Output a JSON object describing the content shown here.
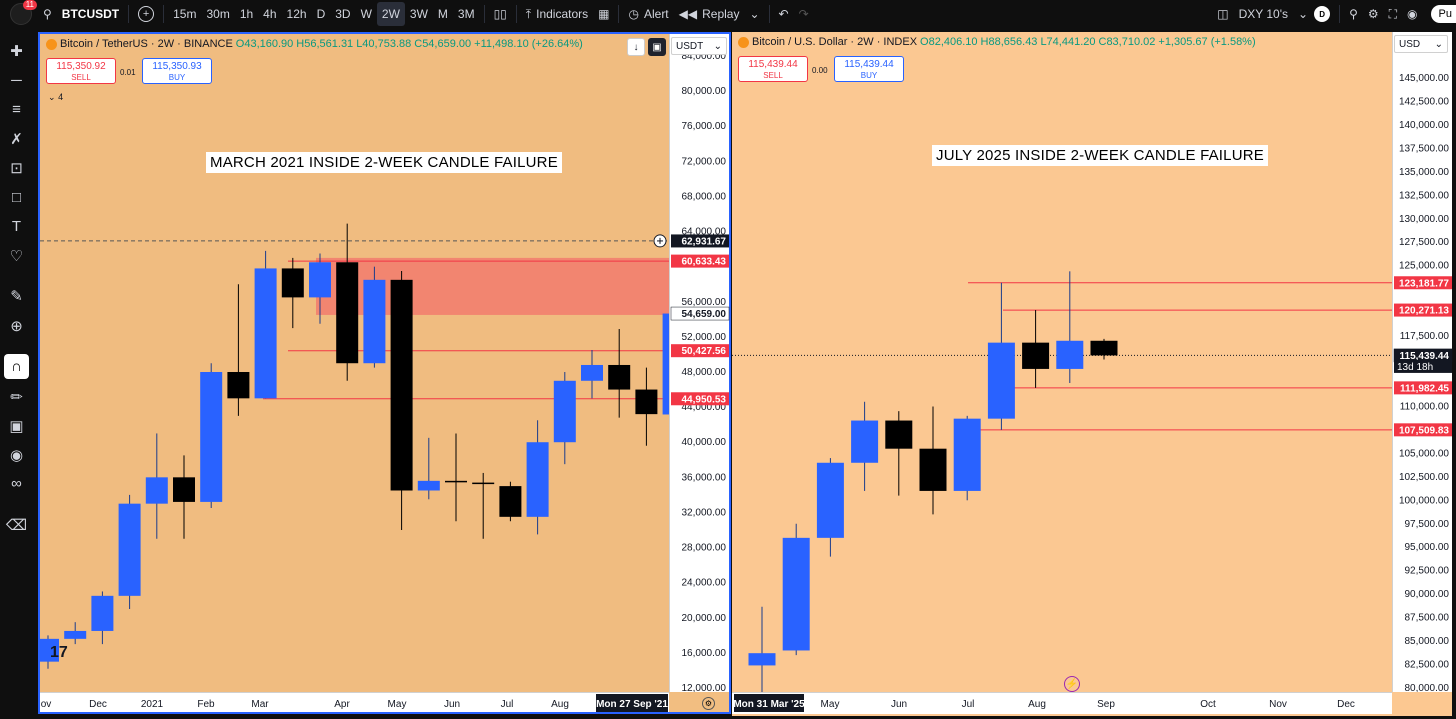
{
  "topbar": {
    "symbol": "BTCUSDT",
    "badge_count": "11",
    "intervals": [
      "15m",
      "30m",
      "1h",
      "4h",
      "12h",
      "D",
      "3D",
      "W",
      "2W",
      "3W",
      "M",
      "3M"
    ],
    "active_interval": "2W",
    "indicators_label": "Indicators",
    "alert_label": "Alert",
    "replay_label": "Replay",
    "compare_symbol": "DXY 10's",
    "d_badge": "D",
    "profile_label": "Pu"
  },
  "left_panel": {
    "pair": "Bitcoin / TetherUS · 2W · BINANCE",
    "open": "O43,160.90",
    "high": "H56,561.31",
    "low": "L40,753.88",
    "close": "C54,659.00",
    "change": "+11,498.10 (+26.64%)",
    "sell_price": "115,350.92",
    "sell_label": "SELL",
    "spread": "0.01",
    "buy_price": "115,350.93",
    "buy_label": "BUY",
    "layer_count": "4",
    "currency": "USDT",
    "title": "MARCH 2021 INSIDE 2-WEEK CANDLE FAILURE",
    "y_ticks": [
      "84,000.00",
      "80,000.00",
      "76,000.00",
      "72,000.00",
      "68,000.00",
      "64,000.00",
      "56,000.00",
      "52,000.00",
      "48,000.00",
      "44,000.00",
      "40,000.00",
      "36,000.00",
      "32,000.00",
      "28,000.00",
      "24,000.00",
      "20,000.00",
      "16,000.00",
      "12,000.00"
    ],
    "price_labels": [
      {
        "text": "62,931.67",
        "kind": "crosshair"
      },
      {
        "text": "60,633.43",
        "kind": "red"
      },
      {
        "text": "54,659.00",
        "kind": "last"
      },
      {
        "text": "50,427.56",
        "kind": "red"
      },
      {
        "text": "44,950.53",
        "kind": "red"
      }
    ],
    "x_ticks": [
      "ov",
      "Dec",
      "2021",
      "Feb",
      "Mar",
      "Apr",
      "May",
      "Jun",
      "Jul",
      "Aug"
    ],
    "x_cursor_label": "Mon 27 Sep '21"
  },
  "right_panel": {
    "pair": "Bitcoin / U.S. Dollar · 2W · INDEX",
    "open": "O82,406.10",
    "high": "H88,656.43",
    "low": "L74,441.20",
    "close": "C83,710.02",
    "change": "+1,305.67 (+1.58%)",
    "sell_price": "115,439.44",
    "sell_label": "SELL",
    "spread": "0.00",
    "buy_price": "115,439.44",
    "buy_label": "BUY",
    "currency": "USD",
    "title": "JULY 2025 INSIDE 2-WEEK CANDLE FAILURE",
    "y_ticks": [
      "145,000.00",
      "142,500.00",
      "140,000.00",
      "137,500.00",
      "135,000.00",
      "132,500.00",
      "130,000.00",
      "127,500.00",
      "125,000.00",
      "117,500.00",
      "110,000.00",
      "105,000.00",
      "102,500.00",
      "100,000.00",
      "97,500.00",
      "95,000.00",
      "92,500.00",
      "90,000.00",
      "87,500.00",
      "85,000.00",
      "82,500.00",
      "80,000.00"
    ],
    "price_labels": [
      {
        "text": "123,181.77",
        "kind": "red"
      },
      {
        "text": "120,271.13",
        "kind": "red"
      },
      {
        "text": "115,439.44",
        "kind": "last"
      },
      {
        "text": "13d 18h",
        "kind": "countdown"
      },
      {
        "text": "111,982.45",
        "kind": "red"
      },
      {
        "text": "107,509.83",
        "kind": "red"
      }
    ],
    "x_ticks": [
      "May",
      "Jun",
      "Jul",
      "Aug",
      "Sep",
      "Oct",
      "Nov",
      "Dec"
    ],
    "x_cursor_label": "Mon 31 Mar '25"
  },
  "colors": {
    "bull": "#2962ff",
    "bear": "#000000",
    "level_line": "#f23645",
    "zone_fill": "#f28570",
    "left_bg": "#f0bc80",
    "right_bg": "#fbc892"
  },
  "chart_data": [
    {
      "type": "candlestick",
      "title": "MARCH 2021 INSIDE 2-WEEK CANDLE FAILURE",
      "interval": "2W",
      "ylim": [
        12000,
        84000
      ],
      "candles": [
        {
          "o": 15000,
          "h": 18000,
          "l": 14200,
          "c": 17600
        },
        {
          "o": 17600,
          "h": 19500,
          "l": 17000,
          "c": 18500
        },
        {
          "o": 18500,
          "h": 23000,
          "l": 17000,
          "c": 22500
        },
        {
          "o": 22500,
          "h": 34000,
          "l": 21000,
          "c": 33000
        },
        {
          "o": 33000,
          "h": 41000,
          "l": 29000,
          "c": 36000
        },
        {
          "o": 36000,
          "h": 38500,
          "l": 29000,
          "c": 33200
        },
        {
          "o": 33200,
          "h": 49000,
          "l": 32500,
          "c": 48000
        },
        {
          "o": 48000,
          "h": 58000,
          "l": 43000,
          "c": 45000
        },
        {
          "o": 45000,
          "h": 61800,
          "l": 45000,
          "c": 59800
        },
        {
          "o": 59800,
          "h": 61000,
          "l": 53000,
          "c": 56500
        },
        {
          "o": 56500,
          "h": 61500,
          "l": 53500,
          "c": 60500
        },
        {
          "o": 60500,
          "h": 64900,
          "l": 47000,
          "c": 49000
        },
        {
          "o": 49000,
          "h": 60000,
          "l": 48500,
          "c": 58500
        },
        {
          "o": 58500,
          "h": 59500,
          "l": 30000,
          "c": 34500
        },
        {
          "o": 34500,
          "h": 40500,
          "l": 33500,
          "c": 35600
        },
        {
          "o": 35600,
          "h": 41000,
          "l": 31000,
          "c": 35500
        },
        {
          "o": 35400,
          "h": 36500,
          "l": 29000,
          "c": 35300
        },
        {
          "o": 35000,
          "h": 35500,
          "l": 31000,
          "c": 31500
        },
        {
          "o": 31500,
          "h": 42500,
          "l": 29500,
          "c": 40000
        },
        {
          "o": 40000,
          "h": 48000,
          "l": 37500,
          "c": 47000
        },
        {
          "o": 47000,
          "h": 50500,
          "l": 45000,
          "c": 48800
        },
        {
          "o": 48800,
          "h": 52900,
          "l": 42800,
          "c": 46000
        },
        {
          "o": 46000,
          "h": 48500,
          "l": 39600,
          "c": 43200
        },
        {
          "o": 43160.9,
          "h": 56561.31,
          "l": 40753.88,
          "c": 54659
        }
      ],
      "levels": [
        62931.67,
        60633.43,
        50427.56,
        44950.53
      ],
      "zone": [
        54500,
        61000
      ]
    },
    {
      "type": "candlestick",
      "title": "JULY 2025 INSIDE 2-WEEK CANDLE FAILURE",
      "interval": "2W",
      "ylim": [
        80000,
        145000
      ],
      "candles": [
        {
          "o": 82406.1,
          "h": 88656.43,
          "l": 74441.2,
          "c": 83710.02
        },
        {
          "o": 84000,
          "h": 97500,
          "l": 83500,
          "c": 96000
        },
        {
          "o": 96000,
          "h": 104500,
          "l": 94000,
          "c": 104000
        },
        {
          "o": 104000,
          "h": 110500,
          "l": 101000,
          "c": 108500
        },
        {
          "o": 108500,
          "h": 109500,
          "l": 100500,
          "c": 105500
        },
        {
          "o": 105500,
          "h": 110000,
          "l": 98500,
          "c": 101000
        },
        {
          "o": 101000,
          "h": 109000,
          "l": 100000,
          "c": 108700
        },
        {
          "o": 108700,
          "h": 123181.77,
          "l": 107509.83,
          "c": 116800
        },
        {
          "o": 116800,
          "h": 120271.13,
          "l": 111982.45,
          "c": 114000
        },
        {
          "o": 114000,
          "h": 124400,
          "l": 112500,
          "c": 117000
        },
        {
          "o": 117000,
          "h": 117200,
          "l": 115000,
          "c": 115439.44
        }
      ],
      "levels": [
        123181.77,
        120271.13,
        111982.45,
        107509.83
      ]
    }
  ]
}
